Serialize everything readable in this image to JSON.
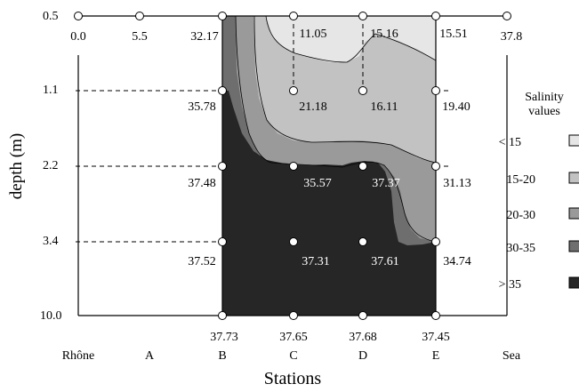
{
  "axis": {
    "y_title": "depth (m)",
    "x_title": "Stations",
    "depth_ticks": [
      "0.5",
      "1.1",
      "2.2",
      "3.4",
      "10.0"
    ],
    "stations": [
      "Rhône",
      "A",
      "B",
      "C",
      "D",
      "E",
      "Sea"
    ]
  },
  "measurements": {
    "surface": [
      "0.0",
      "5.5",
      "32.17",
      "11.05",
      "15.16",
      "15.51",
      "37.8"
    ],
    "d1_1": {
      "B": "35.78",
      "C": "21.18",
      "D": "16.11",
      "E": "19.40"
    },
    "d2_2": {
      "B": "37.48",
      "C": "35.57",
      "D": "37.37",
      "E": "31.13"
    },
    "d3_4": {
      "B": "37.52",
      "C": "37.31",
      "D": "37.61",
      "E": "34.74"
    },
    "bottom": {
      "B": "37.73",
      "C": "37.65",
      "D": "37.68",
      "E": "37.45"
    }
  },
  "legend": {
    "title_line1": "Salinity",
    "title_line2": "values",
    "items": [
      {
        "label": "< 15",
        "color": "#e6e6e6"
      },
      {
        "label": "15-20",
        "color": "#c2c2c2"
      },
      {
        "label": "20-30",
        "color": "#9a9a9a"
      },
      {
        "label": "30-35",
        "color": "#6e6e6e"
      },
      {
        "label": "> 35",
        "color": "#262626"
      }
    ]
  },
  "colors": {
    "lt15": "#e6e6e6",
    "s15_20": "#c2c2c2",
    "s20_30": "#9a9a9a",
    "s30_35": "#6e6e6e",
    "gt35": "#262626"
  }
}
